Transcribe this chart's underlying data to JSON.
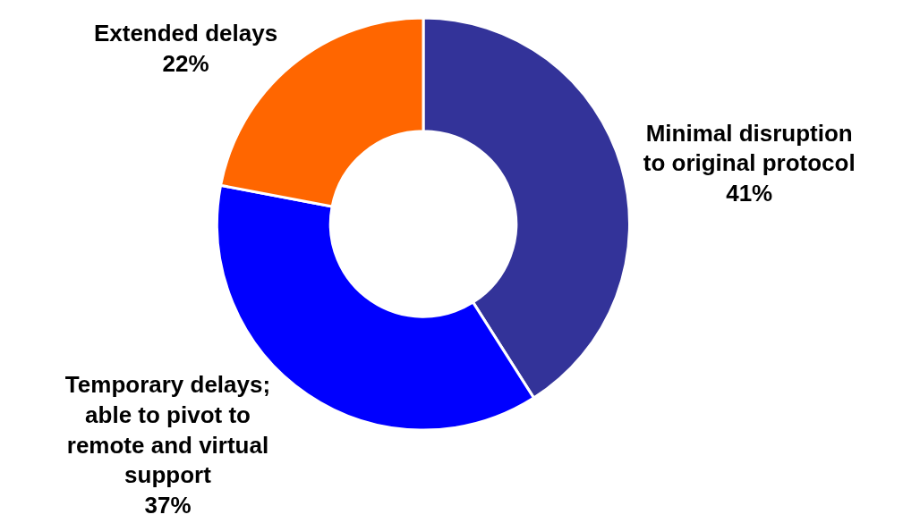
{
  "chart_data": {
    "type": "donut",
    "categories": [
      "Minimal disruption to original protocol",
      "Temporary delays; able to pivot to remote and virtual support",
      "Extended delays"
    ],
    "values": [
      41,
      37,
      22
    ],
    "value_labels": [
      "41%",
      "37%",
      "22%"
    ],
    "colors": [
      "#333399",
      "#0000ff",
      "#ff6600"
    ],
    "legend": false
  }
}
